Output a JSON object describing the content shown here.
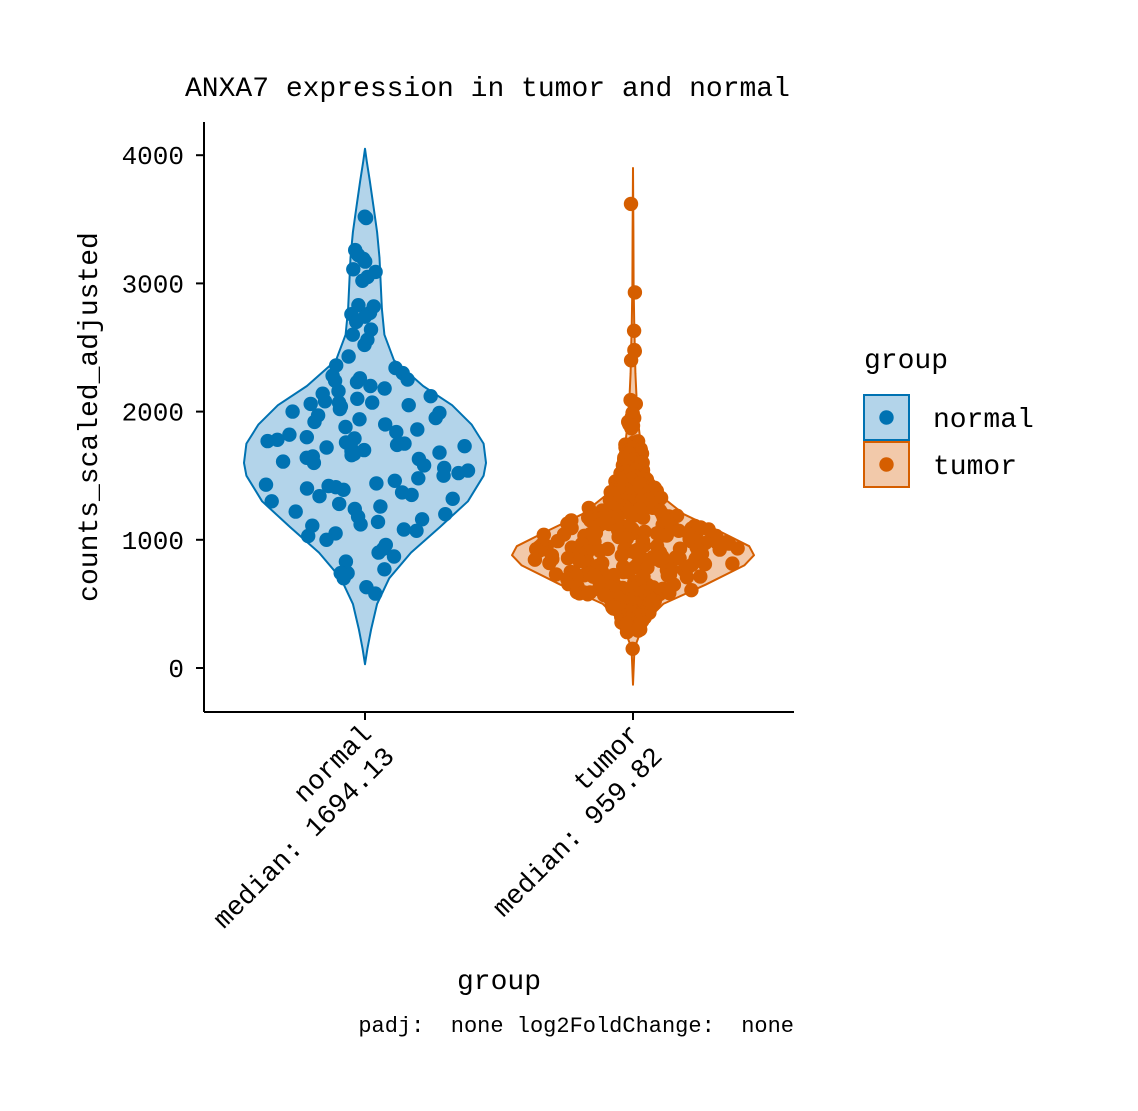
{
  "chart_data": {
    "type": "violin",
    "title": "ANXA7 expression in tumor and normal",
    "xlabel": "group",
    "ylabel": "counts_scaled_adjusted",
    "ylim": [
      -330,
      4260
    ],
    "yticks": [
      0,
      1000,
      2000,
      3000,
      4000
    ],
    "categories": [
      {
        "name": "normal",
        "label_line1": "normal",
        "label_line2": "median: 1694.13",
        "median": 1694.13,
        "color": "#0072B2",
        "fill": "#B3D4EA",
        "violin_range": [
          30,
          4050
        ],
        "points": [
          3520,
          3510,
          3260,
          3220,
          3190,
          3170,
          3110,
          3090,
          3050,
          3020,
          2830,
          2820,
          2770,
          2760,
          2740,
          2700,
          2640,
          2600,
          2560,
          2520,
          2430,
          2360,
          2340,
          2300,
          2280,
          2260,
          2250,
          2240,
          2230,
          2200,
          2180,
          2160,
          2140,
          2120,
          2100,
          2080,
          2070,
          2070,
          2060,
          2050,
          2040,
          2020,
          2000,
          1990,
          1970,
          1950,
          1940,
          1920,
          1900,
          1880,
          1860,
          1840,
          1820,
          1800,
          1790,
          1780,
          1770,
          1760,
          1750,
          1740,
          1730,
          1720,
          1710,
          1700,
          1690,
          1680,
          1670,
          1660,
          1650,
          1640,
          1630,
          1610,
          1600,
          1580,
          1560,
          1540,
          1520,
          1500,
          1480,
          1460,
          1440,
          1430,
          1420,
          1410,
          1400,
          1390,
          1370,
          1350,
          1340,
          1320,
          1300,
          1280,
          1260,
          1240,
          1220,
          1200,
          1180,
          1160,
          1140,
          1120,
          1110,
          1080,
          1070,
          1050,
          1030,
          1000,
          960,
          930,
          900,
          870,
          830,
          770,
          740,
          740,
          720,
          700,
          630,
          580
        ]
      },
      {
        "name": "tumor",
        "label_line1": "tumor",
        "label_line2": "median: 959.82",
        "median": 959.82,
        "color": "#D55E00",
        "fill": "#F2C9AA",
        "violin_range": [
          -130,
          3900
        ],
        "points": [
          3620,
          2930,
          2630,
          2480,
          2470,
          2400,
          2090,
          2060,
          1990,
          1980,
          1960,
          1950,
          1940,
          1920,
          1900,
          1890,
          1870,
          1760,
          1740,
          1720,
          1710,
          1700,
          1690,
          1670,
          1660,
          1650,
          1640,
          1620,
          1600,
          1580,
          1560,
          1540,
          1520,
          1500,
          1480,
          1470,
          1450,
          1430,
          1410,
          1390,
          1370,
          1350,
          1330,
          1310,
          1290,
          1270,
          1250,
          1230,
          1210,
          1190,
          1170,
          1150,
          1130,
          1110,
          1090,
          1070,
          1050,
          1030,
          1010,
          990,
          970,
          950,
          930,
          910,
          890,
          870,
          850,
          830,
          810,
          790,
          770,
          750,
          730,
          710,
          690,
          670,
          650,
          630,
          610,
          590,
          570,
          550,
          530,
          510,
          490,
          470,
          450,
          430,
          410,
          390,
          370,
          350,
          330,
          300,
          280,
          150
        ]
      }
    ],
    "legend": {
      "title": "group",
      "position": "right",
      "items": [
        {
          "label": "normal",
          "color": "#0072B2",
          "fill": "#B3D4EA"
        },
        {
          "label": "tumor",
          "color": "#D55E00",
          "fill": "#F2C9AA"
        }
      ]
    },
    "caption": "padj:  none log2FoldChange:  none",
    "grid": false
  }
}
